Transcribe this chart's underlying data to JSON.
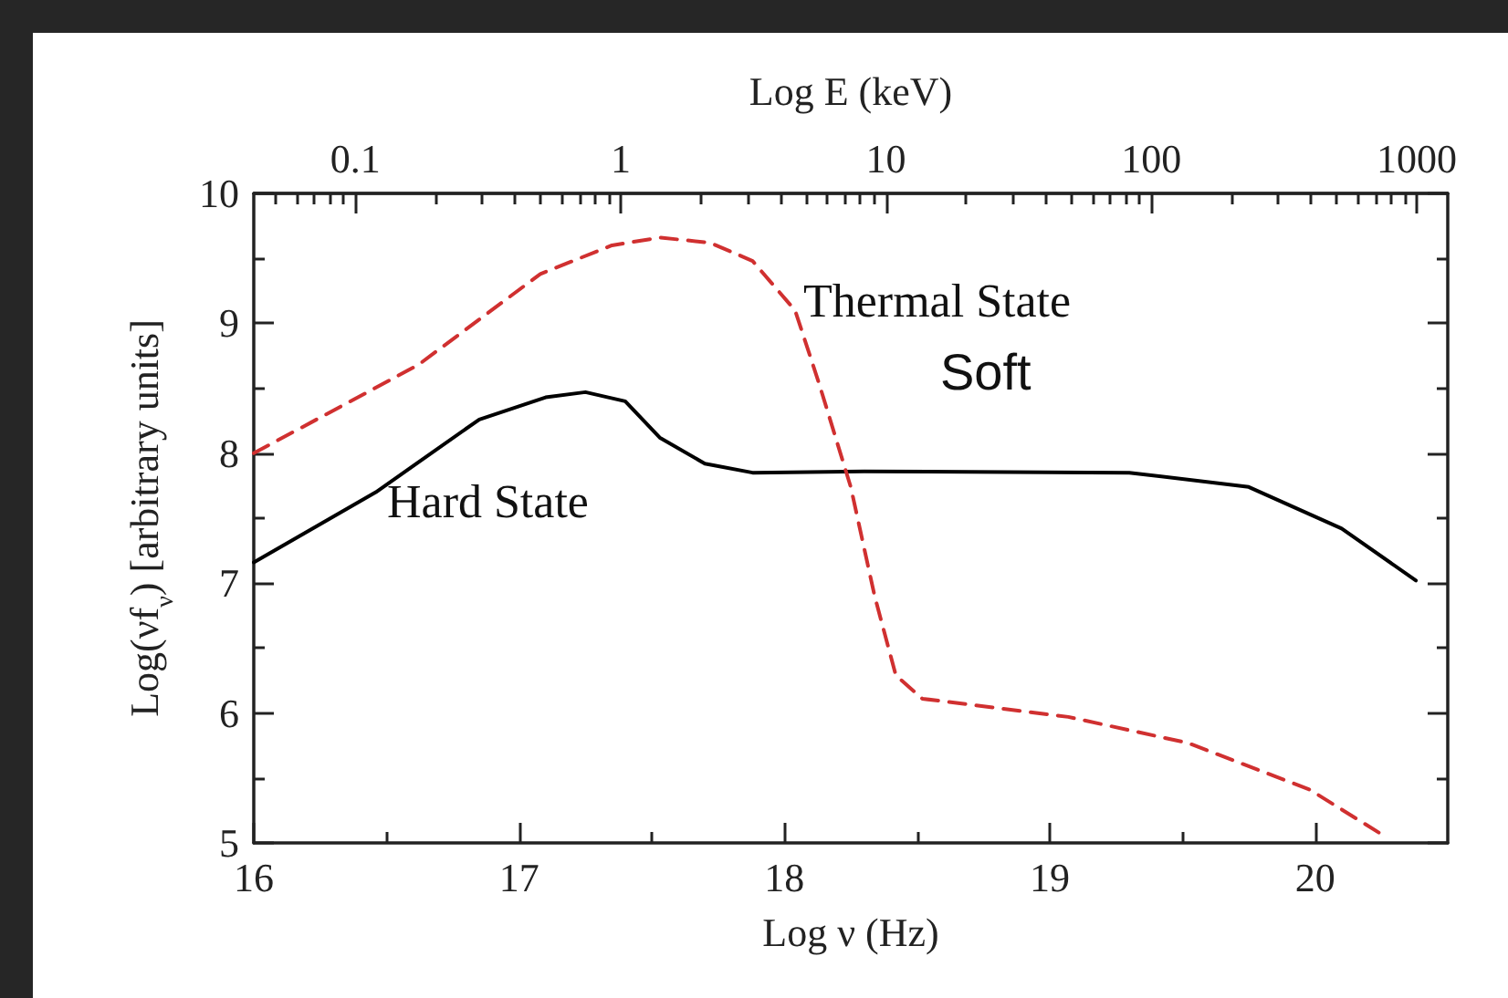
{
  "chart_data": {
    "type": "line",
    "xlabel": "Log ν (Hz)",
    "ylabel": "Log(νf$_{ν}$) [arbitrary units]",
    "x2label": "Log E (keV)",
    "xlim": [
      16,
      20.5
    ],
    "xticks": [
      16,
      {
        "value": 16.5,
        "label": null
      },
      17,
      {
        "value": 17.5,
        "label": null
      },
      18,
      {
        "value": 18.5,
        "label": null
      },
      19,
      {
        "value": 19.5,
        "label": null
      },
      20
    ],
    "ylim": [
      5,
      10
    ],
    "yticks": [
      5,
      {
        "value": 5.5,
        "label": null
      },
      6,
      {
        "value": 6.5,
        "label": null
      },
      7,
      {
        "value": 7.5,
        "label": null
      },
      8,
      {
        "value": 8.5,
        "label": null
      },
      9,
      {
        "value": 9.5,
        "label": null
      },
      10
    ],
    "log": "x2",
    "x2lim": [
      0.0414,
      1310
    ],
    "x2ticks": [
      {
        "value": 0.05,
        "label": null
      },
      {
        "value": 0.06,
        "label": null
      },
      {
        "value": 0.07,
        "label": null
      },
      {
        "value": 0.08,
        "label": null
      },
      {
        "value": 0.09,
        "label": null
      },
      0.1,
      {
        "value": 0.2,
        "label": null
      },
      {
        "value": 0.3,
        "label": null
      },
      {
        "value": 0.4,
        "label": null
      },
      {
        "value": 0.5,
        "label": null
      },
      {
        "value": 0.6,
        "label": null
      },
      {
        "value": 0.7,
        "label": null
      },
      {
        "value": 0.8,
        "label": null
      },
      {
        "value": 0.9,
        "label": null
      },
      1,
      {
        "value": 2,
        "label": null
      },
      {
        "value": 3,
        "label": null
      },
      {
        "value": 4,
        "label": null
      },
      {
        "value": 5,
        "label": null
      },
      {
        "value": 6,
        "label": null
      },
      {
        "value": 7,
        "label": null
      },
      {
        "value": 8,
        "label": null
      },
      {
        "value": 9,
        "label": null
      },
      10,
      {
        "value": 20,
        "label": null
      },
      {
        "value": 30,
        "label": null
      },
      {
        "value": 40,
        "label": null
      },
      {
        "value": 50,
        "label": null
      },
      {
        "value": 60,
        "label": null
      },
      {
        "value": 70,
        "label": null
      },
      {
        "value": 80,
        "label": null
      },
      {
        "value": 90,
        "label": null
      },
      100,
      {
        "value": 200,
        "label": null
      },
      {
        "value": 300,
        "label": null
      },
      {
        "value": 400,
        "label": null
      },
      {
        "value": 500,
        "label": null
      },
      {
        "value": 600,
        "label": null
      },
      {
        "value": 700,
        "label": null
      },
      {
        "value": 800,
        "label": null
      },
      {
        "value": 900,
        "label": null
      },
      1000
    ],
    "grid": false,
    "marker": "none",
    "annotations": [
      "Thermal State",
      "Soft",
      "Hard State"
    ],
    "series": [
      {
        "color": "#000000",
        "line_style": "solid",
        "x": [
          16.0,
          16.46,
          16.85,
          17.1,
          17.25,
          17.4,
          17.53,
          17.7,
          17.88,
          18.3,
          19.3,
          19.75,
          20.1,
          20.38
        ],
        "values": [
          7.16,
          7.7,
          8.26,
          8.43,
          8.47,
          8.4,
          8.12,
          7.92,
          7.85,
          7.86,
          7.85,
          7.74,
          7.42,
          7.02
        ]
      },
      {
        "color": "#d03030",
        "line_style": "dashed",
        "x": [
          16.0,
          16.62,
          17.08,
          17.35,
          17.53,
          17.72,
          17.88,
          18.04,
          18.13,
          18.25,
          18.34,
          18.42,
          18.52,
          19.07,
          19.52,
          19.98,
          20.24
        ],
        "values": [
          8.0,
          8.68,
          9.38,
          9.6,
          9.66,
          9.62,
          9.48,
          9.1,
          8.54,
          7.74,
          6.9,
          6.29,
          6.11,
          5.97,
          5.77,
          5.41,
          5.08
        ]
      }
    ]
  }
}
